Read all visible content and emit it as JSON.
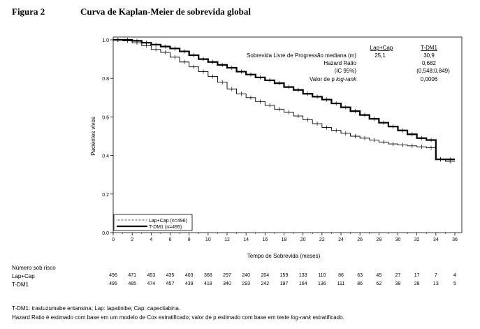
{
  "figure": {
    "label": "Figura 2",
    "title": "Curva de Kaplan-Meier de sobrevida global"
  },
  "stats": {
    "headers": [
      "Lap+Cap",
      "T-DM1"
    ],
    "rows": [
      {
        "label": "Sobrevida Livre de Progressão mediana (m)",
        "lap": "25,1",
        "tdm1": "30,9"
      },
      {
        "label": "Hazard Ratio",
        "lap": "",
        "tdm1": "0,682"
      },
      {
        "label": "(IC 95%)",
        "lap": "",
        "tdm1": "(0,548;0,849)"
      },
      {
        "label_prefix": "Valor de p ",
        "label_italic": "log-rank",
        "lap": "",
        "tdm1": "0,0006"
      }
    ]
  },
  "legend": {
    "lap": "Lap+Cap (n=496)",
    "tdm1": "T-DM1 (n=495)"
  },
  "chart_data": {
    "type": "line",
    "xlabel": "Tempo de Sobrevida (meses)",
    "ylabel": "Pacientes vivos",
    "xlim": [
      0,
      36
    ],
    "ylim": [
      0,
      1.0
    ],
    "xticks": [
      0,
      2,
      4,
      6,
      8,
      10,
      12,
      14,
      16,
      18,
      20,
      22,
      24,
      26,
      28,
      30,
      32,
      34,
      36
    ],
    "yticks": [
      0.0,
      0.2,
      0.4,
      0.6,
      0.8,
      1.0
    ],
    "ytick_labels": [
      "0.0",
      "0.2",
      "0.4",
      "0.6",
      "0.8",
      "1.0"
    ],
    "grid": false,
    "legend_position": "bottom-left",
    "series": [
      {
        "name": "Lap+Cap (n=496)",
        "style": "thin",
        "x": [
          0,
          1,
          2,
          3,
          4,
          5,
          6,
          7,
          8,
          9,
          10,
          11,
          12,
          13,
          14,
          15,
          16,
          17,
          18,
          19,
          20,
          21,
          22,
          23,
          24,
          25,
          26,
          27,
          28,
          29,
          30,
          31,
          32,
          33,
          34,
          35,
          36
        ],
        "y": [
          1.0,
          0.995,
          0.985,
          0.97,
          0.95,
          0.935,
          0.91,
          0.885,
          0.86,
          0.835,
          0.81,
          0.78,
          0.745,
          0.72,
          0.7,
          0.68,
          0.66,
          0.64,
          0.625,
          0.605,
          0.585,
          0.565,
          0.545,
          0.53,
          0.515,
          0.5,
          0.49,
          0.48,
          0.47,
          0.46,
          0.455,
          0.45,
          0.445,
          0.44,
          0.38,
          0.37,
          0.37
        ]
      },
      {
        "name": "T-DM1 (n=495)",
        "style": "thick",
        "x": [
          0,
          1,
          2,
          3,
          4,
          5,
          6,
          7,
          8,
          9,
          10,
          11,
          12,
          13,
          14,
          15,
          16,
          17,
          18,
          19,
          20,
          21,
          22,
          23,
          24,
          25,
          26,
          27,
          28,
          29,
          30,
          31,
          32,
          33,
          34,
          35,
          36
        ],
        "y": [
          1.0,
          1.0,
          0.995,
          0.985,
          0.975,
          0.965,
          0.955,
          0.94,
          0.92,
          0.9,
          0.885,
          0.87,
          0.855,
          0.835,
          0.82,
          0.805,
          0.79,
          0.775,
          0.755,
          0.74,
          0.72,
          0.705,
          0.69,
          0.67,
          0.65,
          0.63,
          0.61,
          0.59,
          0.57,
          0.55,
          0.53,
          0.51,
          0.49,
          0.48,
          0.38,
          0.38,
          0.38
        ]
      }
    ]
  },
  "risk_table": {
    "title": "Número sob risco",
    "times": [
      0,
      2,
      4,
      6,
      8,
      10,
      12,
      14,
      16,
      18,
      20,
      22,
      24,
      26,
      28,
      30,
      32,
      34,
      36
    ],
    "rows": [
      {
        "label": "Lap+Cap",
        "values": [
          "496",
          "471",
          "453",
          "435",
          "403",
          "368",
          "297",
          "240",
          "204",
          "159",
          "133",
          "110",
          "86",
          "63",
          "45",
          "27",
          "17",
          "7",
          "4"
        ]
      },
      {
        "label": "T-DM1",
        "values": [
          "495",
          "485",
          "474",
          "457",
          "439",
          "418",
          "340",
          "293",
          "242",
          "197",
          "164",
          "136",
          "111",
          "86",
          "62",
          "38",
          "28",
          "13",
          "5"
        ]
      }
    ]
  },
  "footnotes": {
    "line1": "T-DM1: trastuzumabe entansina; Lap: lapatinibe; Cap: capecitabina.",
    "line2_prefix": "Hazard Ratio é estimado com base em um modelo de Cox estratificado; valor de p estimado com base em teste ",
    "line2_italic": "log-rank",
    "line2_suffix": " estratificado."
  }
}
